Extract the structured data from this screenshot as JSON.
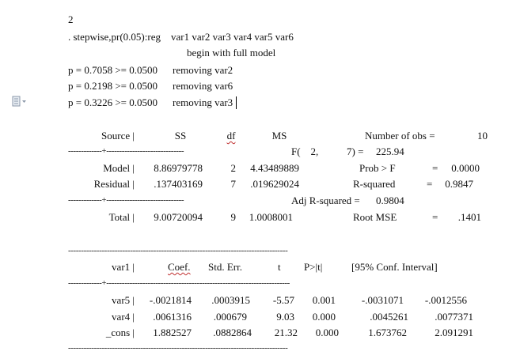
{
  "doc": {
    "line_number": "2",
    "command": ". stepwise,pr(0.05):reg    var1 var2 var3 var4 var5 var6",
    "begin_msg": "begin with full model",
    "removals": [
      {
        "p": "p = 0.7058 >= 0.0500",
        "action": "removing var2"
      },
      {
        "p": "p = 0.2198 >= 0.0500",
        "action": "removing var6"
      },
      {
        "p": "p = 0.3226 >= 0.0500",
        "action": "removing var3"
      }
    ]
  },
  "anova": {
    "headers": {
      "source": "Source |",
      "ss": "SS",
      "df": "df",
      "ms": "MS"
    },
    "sep1": "-------------+------------------------------",
    "sep2": "-------------+------------------------------",
    "rows": [
      {
        "label": "Model |",
        "ss": "8.86979778",
        "df": "2",
        "ms": "4.43489889"
      },
      {
        "label": "Residual |",
        "ss": ".137403169",
        "df": "7",
        "ms": ".019629024"
      },
      {
        "label": "Total |",
        "ss": "9.00720094",
        "df": "9",
        "ms": "1.0008001"
      }
    ]
  },
  "stats": {
    "nobs_label": "Number of obs =",
    "nobs_val": "10",
    "f_label": "F(    2,           7) =",
    "f_val": "225.94",
    "probf_label": "Prob > F",
    "probf_eq": "=",
    "probf_val": "0.0000",
    "r2_label": "R-squared",
    "r2_eq": "=",
    "r2_val": "0.9847",
    "adjr2_label": "Adj R-squared =",
    "adjr2_val": "0.9804",
    "rmse_label": "Root MSE",
    "rmse_eq": "=",
    "rmse_val": ".1401"
  },
  "coef": {
    "sep_top": "-------------------------------------------------------------------------------------",
    "sep_mid": "-------------+-----------------------------------------------------------------------",
    "sep_bot": "-------------------------------------------------------------------------------------",
    "headers": {
      "var": "var1 |",
      "coef": "Coef.",
      "se": "Std. Err.",
      "t": "t",
      "p": "P>|t|",
      "ci": "[95% Conf. Interval]"
    },
    "rows": [
      {
        "name": "var5 |",
        "coef": "-.0021814",
        "se": ".0003915",
        "t": "-5.57",
        "p": "0.001",
        "lo": "-.0031071",
        "hi": "-.0012556"
      },
      {
        "name": "var4 |",
        "coef": ".0061316",
        "se": ".000679",
        "t": "9.03",
        "p": "0.000",
        "lo": ".0045261",
        "hi": ".0077371"
      },
      {
        "name": "_cons |",
        "coef": "1.882527",
        "se": ".0882864",
        "t": "21.32",
        "p": "0.000",
        "lo": "1.673762",
        "hi": "2.091291"
      }
    ]
  },
  "icons": {
    "margin": "paste-options-icon"
  }
}
